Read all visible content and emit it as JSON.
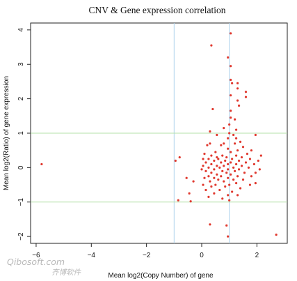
{
  "chart_data": {
    "type": "scatter",
    "title": "CNV & Gene expression correlation",
    "xlabel": "Mean log2(Copy Number) of gene",
    "ylabel": "Mean log2(Ratio) of gene expression",
    "xlim": [
      -6.2,
      3.1
    ],
    "ylim": [
      -2.2,
      4.2
    ],
    "x_ticks": [
      -6,
      -4,
      -2,
      0,
      2
    ],
    "x_tick_labels": [
      "−6",
      "−4",
      "−2",
      "0",
      "2"
    ],
    "y_ticks": [
      -2,
      -1,
      0,
      1,
      2,
      3,
      4
    ],
    "y_tick_labels": [
      "−2",
      "−1",
      "0",
      "1",
      "2",
      "3",
      "4"
    ],
    "reference_lines": {
      "vertical": [
        -1,
        1
      ],
      "horizontal": [
        -1,
        1
      ],
      "vertical_color": "#aed2ec",
      "horizontal_color": "#b6e0a8"
    },
    "point_color": "#e0392f",
    "grid": false,
    "legend": "none",
    "series": [
      {
        "points": [
          [
            -5.8,
            0.1
          ],
          [
            2.7,
            -1.95
          ],
          [
            1.05,
            3.9
          ],
          [
            0.35,
            3.55
          ],
          [
            0.95,
            3.2
          ],
          [
            1.05,
            2.95
          ],
          [
            1.05,
            2.55
          ],
          [
            1.1,
            2.45
          ],
          [
            1.3,
            2.45
          ],
          [
            1.3,
            2.3
          ],
          [
            1.6,
            2.2
          ],
          [
            1.6,
            2.05
          ],
          [
            1.3,
            1.95
          ],
          [
            1.05,
            2.1
          ],
          [
            1.35,
            1.8
          ],
          [
            0.4,
            1.7
          ],
          [
            1.05,
            1.65
          ],
          [
            1.05,
            1.45
          ],
          [
            1.2,
            1.4
          ],
          [
            1.0,
            1.25
          ],
          [
            0.8,
            1.15
          ],
          [
            1.25,
            1.1
          ],
          [
            0.3,
            1.05
          ],
          [
            1.0,
            1.0
          ],
          [
            0.55,
            0.95
          ],
          [
            1.15,
            0.95
          ],
          [
            1.95,
            0.95
          ],
          [
            1.25,
            0.85
          ],
          [
            0.95,
            0.85
          ],
          [
            1.4,
            0.75
          ],
          [
            0.3,
            0.7
          ],
          [
            0.8,
            0.7
          ],
          [
            1.2,
            0.7
          ],
          [
            0.2,
            0.65
          ],
          [
            0.7,
            0.65
          ],
          [
            1.5,
            0.6
          ],
          [
            0.95,
            0.55
          ],
          [
            1.3,
            0.5
          ],
          [
            1.8,
            0.5
          ],
          [
            0.5,
            0.45
          ],
          [
            1.05,
            0.45
          ],
          [
            1.65,
            0.4
          ],
          [
            0.1,
            0.4
          ],
          [
            0.35,
            0.35
          ],
          [
            0.75,
            0.35
          ],
          [
            1.25,
            0.35
          ],
          [
            2.15,
            0.35
          ],
          [
            0.55,
            0.3
          ],
          [
            0.9,
            0.3
          ],
          [
            1.45,
            0.3
          ],
          [
            -0.8,
            0.3
          ],
          [
            -0.95,
            0.2
          ],
          [
            0.05,
            0.25
          ],
          [
            0.25,
            0.25
          ],
          [
            0.6,
            0.25
          ],
          [
            1.1,
            0.25
          ],
          [
            1.75,
            0.25
          ],
          [
            2.05,
            0.2
          ],
          [
            0.45,
            0.2
          ],
          [
            0.85,
            0.2
          ],
          [
            1.35,
            0.2
          ],
          [
            0.15,
            0.15
          ],
          [
            0.7,
            0.15
          ],
          [
            1.05,
            0.15
          ],
          [
            1.6,
            0.15
          ],
          [
            0.35,
            0.1
          ],
          [
            0.95,
            0.1
          ],
          [
            1.25,
            0.1
          ],
          [
            1.9,
            0.1
          ],
          [
            0.05,
            0.05
          ],
          [
            0.55,
            0.05
          ],
          [
            0.8,
            0.05
          ],
          [
            1.45,
            0.05
          ],
          [
            0.25,
            0.0
          ],
          [
            0.65,
            0.0
          ],
          [
            1.15,
            0.0
          ],
          [
            1.7,
            0.0
          ],
          [
            2.1,
            -0.05
          ],
          [
            0.0,
            -0.05
          ],
          [
            0.45,
            -0.05
          ],
          [
            0.95,
            -0.05
          ],
          [
            1.35,
            -0.05
          ],
          [
            0.15,
            -0.1
          ],
          [
            0.75,
            -0.1
          ],
          [
            1.2,
            -0.1
          ],
          [
            0.35,
            -0.15
          ],
          [
            0.9,
            -0.15
          ],
          [
            1.55,
            -0.15
          ],
          [
            1.95,
            -0.15
          ],
          [
            0.55,
            -0.2
          ],
          [
            1.05,
            -0.2
          ],
          [
            0.25,
            -0.25
          ],
          [
            0.7,
            -0.25
          ],
          [
            1.3,
            -0.25
          ],
          [
            1.8,
            -0.25
          ],
          [
            -0.55,
            -0.3
          ],
          [
            0.1,
            -0.3
          ],
          [
            0.45,
            -0.3
          ],
          [
            0.95,
            -0.3
          ],
          [
            0.6,
            -0.35
          ],
          [
            1.15,
            -0.35
          ],
          [
            1.5,
            -0.35
          ],
          [
            -0.3,
            -0.4
          ],
          [
            0.3,
            -0.4
          ],
          [
            0.8,
            -0.4
          ],
          [
            1.25,
            -0.45
          ],
          [
            1.95,
            -0.45
          ],
          [
            0.05,
            -0.5
          ],
          [
            0.5,
            -0.5
          ],
          [
            1.0,
            -0.5
          ],
          [
            1.75,
            -0.5
          ],
          [
            0.35,
            -0.55
          ],
          [
            0.85,
            -0.55
          ],
          [
            1.4,
            -0.6
          ],
          [
            0.15,
            -0.65
          ],
          [
            0.65,
            -0.65
          ],
          [
            1.1,
            -0.7
          ],
          [
            -0.45,
            -0.75
          ],
          [
            0.45,
            -0.75
          ],
          [
            0.95,
            -0.8
          ],
          [
            1.3,
            -0.8
          ],
          [
            0.25,
            -0.85
          ],
          [
            0.75,
            -0.9
          ],
          [
            1.0,
            -0.95
          ],
          [
            -0.85,
            -0.95
          ],
          [
            -0.4,
            -0.98
          ],
          [
            0.3,
            -1.65
          ],
          [
            0.9,
            -1.68
          ],
          [
            0.95,
            -2.0
          ]
        ]
      }
    ]
  },
  "watermark": {
    "text_latin": "Qibosoft.com",
    "text_cjk": "齐博软件"
  }
}
